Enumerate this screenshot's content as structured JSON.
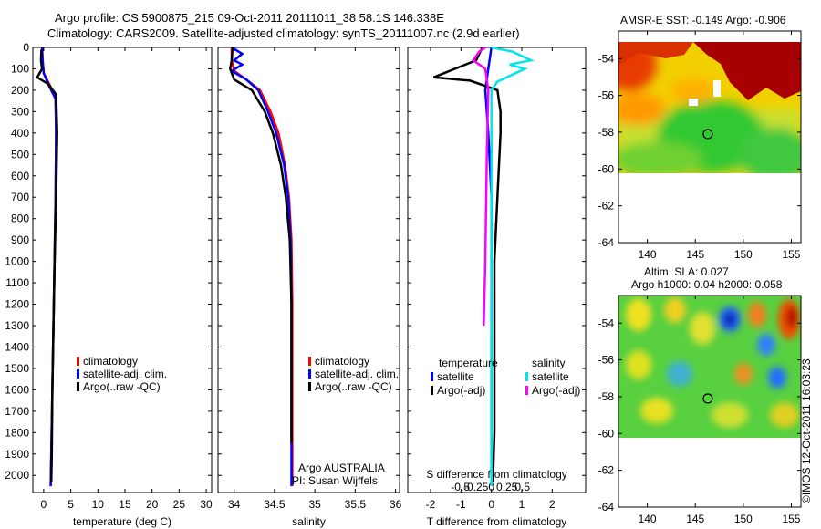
{
  "header": {
    "line1": "Argo profile: CS 5900875_215 09-Oct-2011 20111011_38 58.1S 146.338E",
    "line2": "Climatology: CARS2009. Satellite-adjusted climatology: synTS_20111007.nc (2.9d earlier)"
  },
  "footer": {
    "credit": "©IMOS 12-Oct-2011 16:03:23"
  },
  "colors": {
    "red": "#ff0000",
    "blue": "#0000ff",
    "black": "#000000",
    "cyan": "#00e5e5",
    "magenta": "#ff00ff"
  },
  "depth_ticks": [
    "0",
    "100",
    "200",
    "300",
    "400",
    "500",
    "600",
    "700",
    "800",
    "900",
    "1000",
    "1100",
    "1200",
    "1300",
    "1400",
    "1500",
    "1600",
    "1700",
    "1800",
    "1900",
    "2000"
  ],
  "chart_data": [
    {
      "type": "line",
      "name": "temperature-panel",
      "xlabel": "temperature (deg C)",
      "ylabel": "",
      "xlim": [
        -2,
        31
      ],
      "ylim": [
        0,
        2080
      ],
      "y_reversed": true,
      "x_ticks": [
        "0",
        "5",
        "10",
        "15",
        "20",
        "25",
        "30"
      ],
      "legend": [
        "climatology",
        "satellite-adj. clim.",
        "Argo(..raw -QC)"
      ],
      "series": [
        {
          "name": "climatology",
          "color": "red",
          "points": [
            [
              -0.3,
              0
            ],
            [
              -0.2,
              60
            ],
            [
              0.0,
              120
            ],
            [
              1.2,
              180
            ],
            [
              2.2,
              240
            ],
            [
              2.3,
              400
            ],
            [
              2.2,
              700
            ],
            [
              2.0,
              1000
            ],
            [
              1.8,
              1300
            ],
            [
              1.6,
              1600
            ],
            [
              1.4,
              1900
            ],
            [
              1.3,
              2050
            ]
          ]
        },
        {
          "name": "satellite-adj. clim.",
          "color": "blue",
          "points": [
            [
              -0.3,
              0
            ],
            [
              -0.2,
              60
            ],
            [
              0.0,
              120
            ],
            [
              1.0,
              180
            ],
            [
              2.2,
              240
            ],
            [
              2.3,
              400
            ],
            [
              2.2,
              700
            ],
            [
              2.0,
              1000
            ],
            [
              1.8,
              1300
            ],
            [
              1.6,
              1600
            ],
            [
              1.4,
              1900
            ],
            [
              1.3,
              2050
            ]
          ]
        },
        {
          "name": "Argo(..raw -QC)",
          "color": "black",
          "points": [
            [
              -0.4,
              10
            ],
            [
              -0.5,
              60
            ],
            [
              -0.3,
              100
            ],
            [
              -1.2,
              140
            ],
            [
              0.8,
              170
            ],
            [
              2.3,
              220
            ],
            [
              2.5,
              400
            ],
            [
              2.3,
              700
            ],
            [
              2.0,
              1000
            ],
            [
              1.8,
              1300
            ],
            [
              1.6,
              1600
            ],
            [
              1.5,
              1900
            ],
            [
              1.4,
              2030
            ]
          ]
        }
      ]
    },
    {
      "type": "line",
      "name": "salinity-panel",
      "xlabel": "salinity",
      "ylabel": "",
      "xlim": [
        33.8,
        36.05
      ],
      "ylim": [
        0,
        2080
      ],
      "y_reversed": true,
      "x_ticks": [
        "34",
        "34.5",
        "35",
        "35.5",
        "36"
      ],
      "legend": [
        "climatology",
        "satellite-adj. clim.",
        "Argo(..raw -QC)"
      ],
      "annotation": [
        "Argo AUSTRALIA",
        "PI: Susan Wijffels"
      ],
      "series": [
        {
          "name": "climatology",
          "color": "red",
          "points": [
            [
              33.97,
              0
            ],
            [
              33.97,
              60
            ],
            [
              34.0,
              110
            ],
            [
              34.15,
              150
            ],
            [
              34.32,
              200
            ],
            [
              34.45,
              300
            ],
            [
              34.55,
              400
            ],
            [
              34.63,
              550
            ],
            [
              34.68,
              700
            ],
            [
              34.71,
              900
            ],
            [
              34.72,
              1200
            ],
            [
              34.72,
              1600
            ],
            [
              34.72,
              2050
            ]
          ]
        },
        {
          "name": "satellite-adj. clim.",
          "color": "blue",
          "points": [
            [
              33.97,
              0
            ],
            [
              34.1,
              30
            ],
            [
              34.0,
              60
            ],
            [
              34.1,
              80
            ],
            [
              33.97,
              110
            ],
            [
              34.15,
              150
            ],
            [
              34.3,
              200
            ],
            [
              34.42,
              300
            ],
            [
              34.52,
              400
            ],
            [
              34.62,
              550
            ],
            [
              34.67,
              700
            ],
            [
              34.7,
              900
            ],
            [
              34.71,
              1200
            ],
            [
              34.71,
              1600
            ],
            [
              34.71,
              2050
            ]
          ]
        },
        {
          "name": "Argo(..raw -QC)",
          "color": "black",
          "points": [
            [
              33.98,
              0
            ],
            [
              33.97,
              60
            ],
            [
              33.95,
              100
            ],
            [
              34.0,
              150
            ],
            [
              34.22,
              200
            ],
            [
              34.38,
              300
            ],
            [
              34.48,
              400
            ],
            [
              34.58,
              550
            ],
            [
              34.64,
              700
            ],
            [
              34.69,
              900
            ],
            [
              34.71,
              1200
            ],
            [
              34.71,
              1600
            ],
            [
              34.71,
              1850
            ]
          ]
        }
      ]
    },
    {
      "type": "line",
      "name": "difference-panel",
      "xlabel": "T difference from climatology",
      "xlabel_top": "S difference from climatology",
      "xlim": [
        -2.75,
        3.1
      ],
      "ylim": [
        0,
        2080
      ],
      "y_reversed": true,
      "x_ticks": [
        "-2",
        "-1",
        "0",
        "1",
        "2"
      ],
      "x_ticks_top": [
        "-0.5",
        "-0.25",
        "0",
        "0.25",
        "0.5"
      ],
      "legend_groups": {
        "temperature": [
          "satellite",
          "Argo(-adj)"
        ],
        "salinity": [
          "satellite",
          "Argo(-adj)"
        ]
      },
      "series": [
        {
          "name": "temperature satellite",
          "color": "blue",
          "points": [
            [
              0,
              0
            ],
            [
              -0.1,
              100
            ],
            [
              -0.2,
              200
            ],
            [
              -0.1,
              400
            ],
            [
              0,
              700
            ],
            [
              0,
              1000
            ],
            [
              0,
              1400
            ],
            [
              0,
              1800
            ],
            [
              0,
              2050
            ]
          ]
        },
        {
          "name": "temperature Argo(-adj)",
          "color": "black",
          "points": [
            [
              -0.3,
              0
            ],
            [
              -0.5,
              60
            ],
            [
              -1.9,
              140
            ],
            [
              -0.7,
              155
            ],
            [
              0.2,
              200
            ],
            [
              0.3,
              300
            ],
            [
              0.3,
              400
            ],
            [
              0.2,
              700
            ],
            [
              0.1,
              1000
            ],
            [
              0.1,
              1400
            ],
            [
              0.1,
              1800
            ],
            [
              0.05,
              2030
            ]
          ]
        },
        {
          "name": "salinity satellite",
          "color": "cyan",
          "points": [
            [
              0,
              0
            ],
            [
              0.7,
              20
            ],
            [
              1.3,
              60
            ],
            [
              0.6,
              80
            ],
            [
              1.1,
              100
            ],
            [
              0.2,
              160
            ],
            [
              0,
              200
            ],
            [
              0,
              500
            ],
            [
              0,
              1000
            ],
            [
              0,
              1500
            ],
            [
              0,
              2050
            ]
          ]
        },
        {
          "name": "salinity Argo(-adj)",
          "color": "magenta",
          "points": [
            [
              -0.2,
              0
            ],
            [
              -0.4,
              20
            ],
            [
              -0.6,
              60
            ],
            [
              -0.2,
              100
            ],
            [
              -0.1,
              200
            ],
            [
              -0.15,
              500
            ],
            [
              -0.2,
              1000
            ],
            [
              -0.25,
              1300
            ]
          ]
        }
      ]
    },
    {
      "type": "heatmap",
      "name": "sst-map",
      "title": "AMSR-E SST: -0.149 Argo: -0.906",
      "xlim": [
        137,
        156
      ],
      "ylim": [
        -64,
        -52.5
      ],
      "x_ticks": [
        "140",
        "145",
        "150",
        "155"
      ],
      "y_ticks": [
        "-54",
        "-56",
        "-58",
        "-60",
        "-62",
        "-64"
      ],
      "argo_position": [
        146.3,
        -58.1
      ]
    },
    {
      "type": "heatmap",
      "name": "sla-map",
      "title": "Altim. SLA: 0.027",
      "subtitle": "Argo h1000: 0.04 h2000: 0.058",
      "xlim": [
        137,
        156
      ],
      "ylim": [
        -64,
        -52.5
      ],
      "x_ticks": [
        "140",
        "145",
        "150",
        "155"
      ],
      "y_ticks": [
        "-54",
        "-56",
        "-58",
        "-60",
        "-62",
        "-64"
      ],
      "argo_position": [
        146.3,
        -58.1
      ]
    }
  ]
}
